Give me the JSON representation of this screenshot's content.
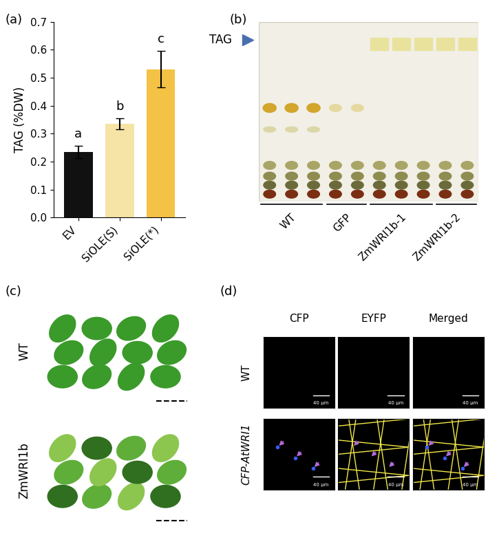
{
  "chart_data": {
    "type": "bar",
    "panel_label": "(a)",
    "categories": [
      "EV",
      "SiOLE(S)",
      "SiOLE(*)"
    ],
    "values": [
      0.235,
      0.335,
      0.53
    ],
    "errors": [
      0.022,
      0.02,
      0.065
    ],
    "colors": [
      "#111111",
      "#f6e3a6",
      "#f4c244"
    ],
    "significance_letters": [
      "a",
      "b",
      "c"
    ],
    "y_label": "TAG (%DW)",
    "ylim": [
      0,
      0.7
    ],
    "yticks": [
      {
        "value": 0,
        "label": "0.0"
      },
      {
        "value": 0.1,
        "label": "0.1"
      },
      {
        "value": 0.2,
        "label": "0.2"
      },
      {
        "value": 0.3,
        "label": "0.3"
      },
      {
        "value": 0.4,
        "label": "0.4"
      },
      {
        "value": 0.5,
        "label": "0.5"
      },
      {
        "value": 0.6,
        "label": "0.6"
      },
      {
        "value": 0.7,
        "label": "0.7"
      }
    ]
  },
  "panel_b": {
    "panel_label": "(b)",
    "marker_label": "TAG",
    "lanes": [
      "WT",
      "GFP",
      "ZmWRI1b-1",
      "ZmWRI1b-2"
    ]
  },
  "panel_c": {
    "panel_label": "(c)",
    "rows": [
      "WT",
      "ZmWRI1b"
    ]
  },
  "panel_d": {
    "panel_label": "(d)",
    "columns": [
      "CFP",
      "EYFP",
      "Merged"
    ],
    "rows": [
      "WT",
      "CFP-AtWRI1"
    ],
    "scale_bar": "40 µm"
  }
}
